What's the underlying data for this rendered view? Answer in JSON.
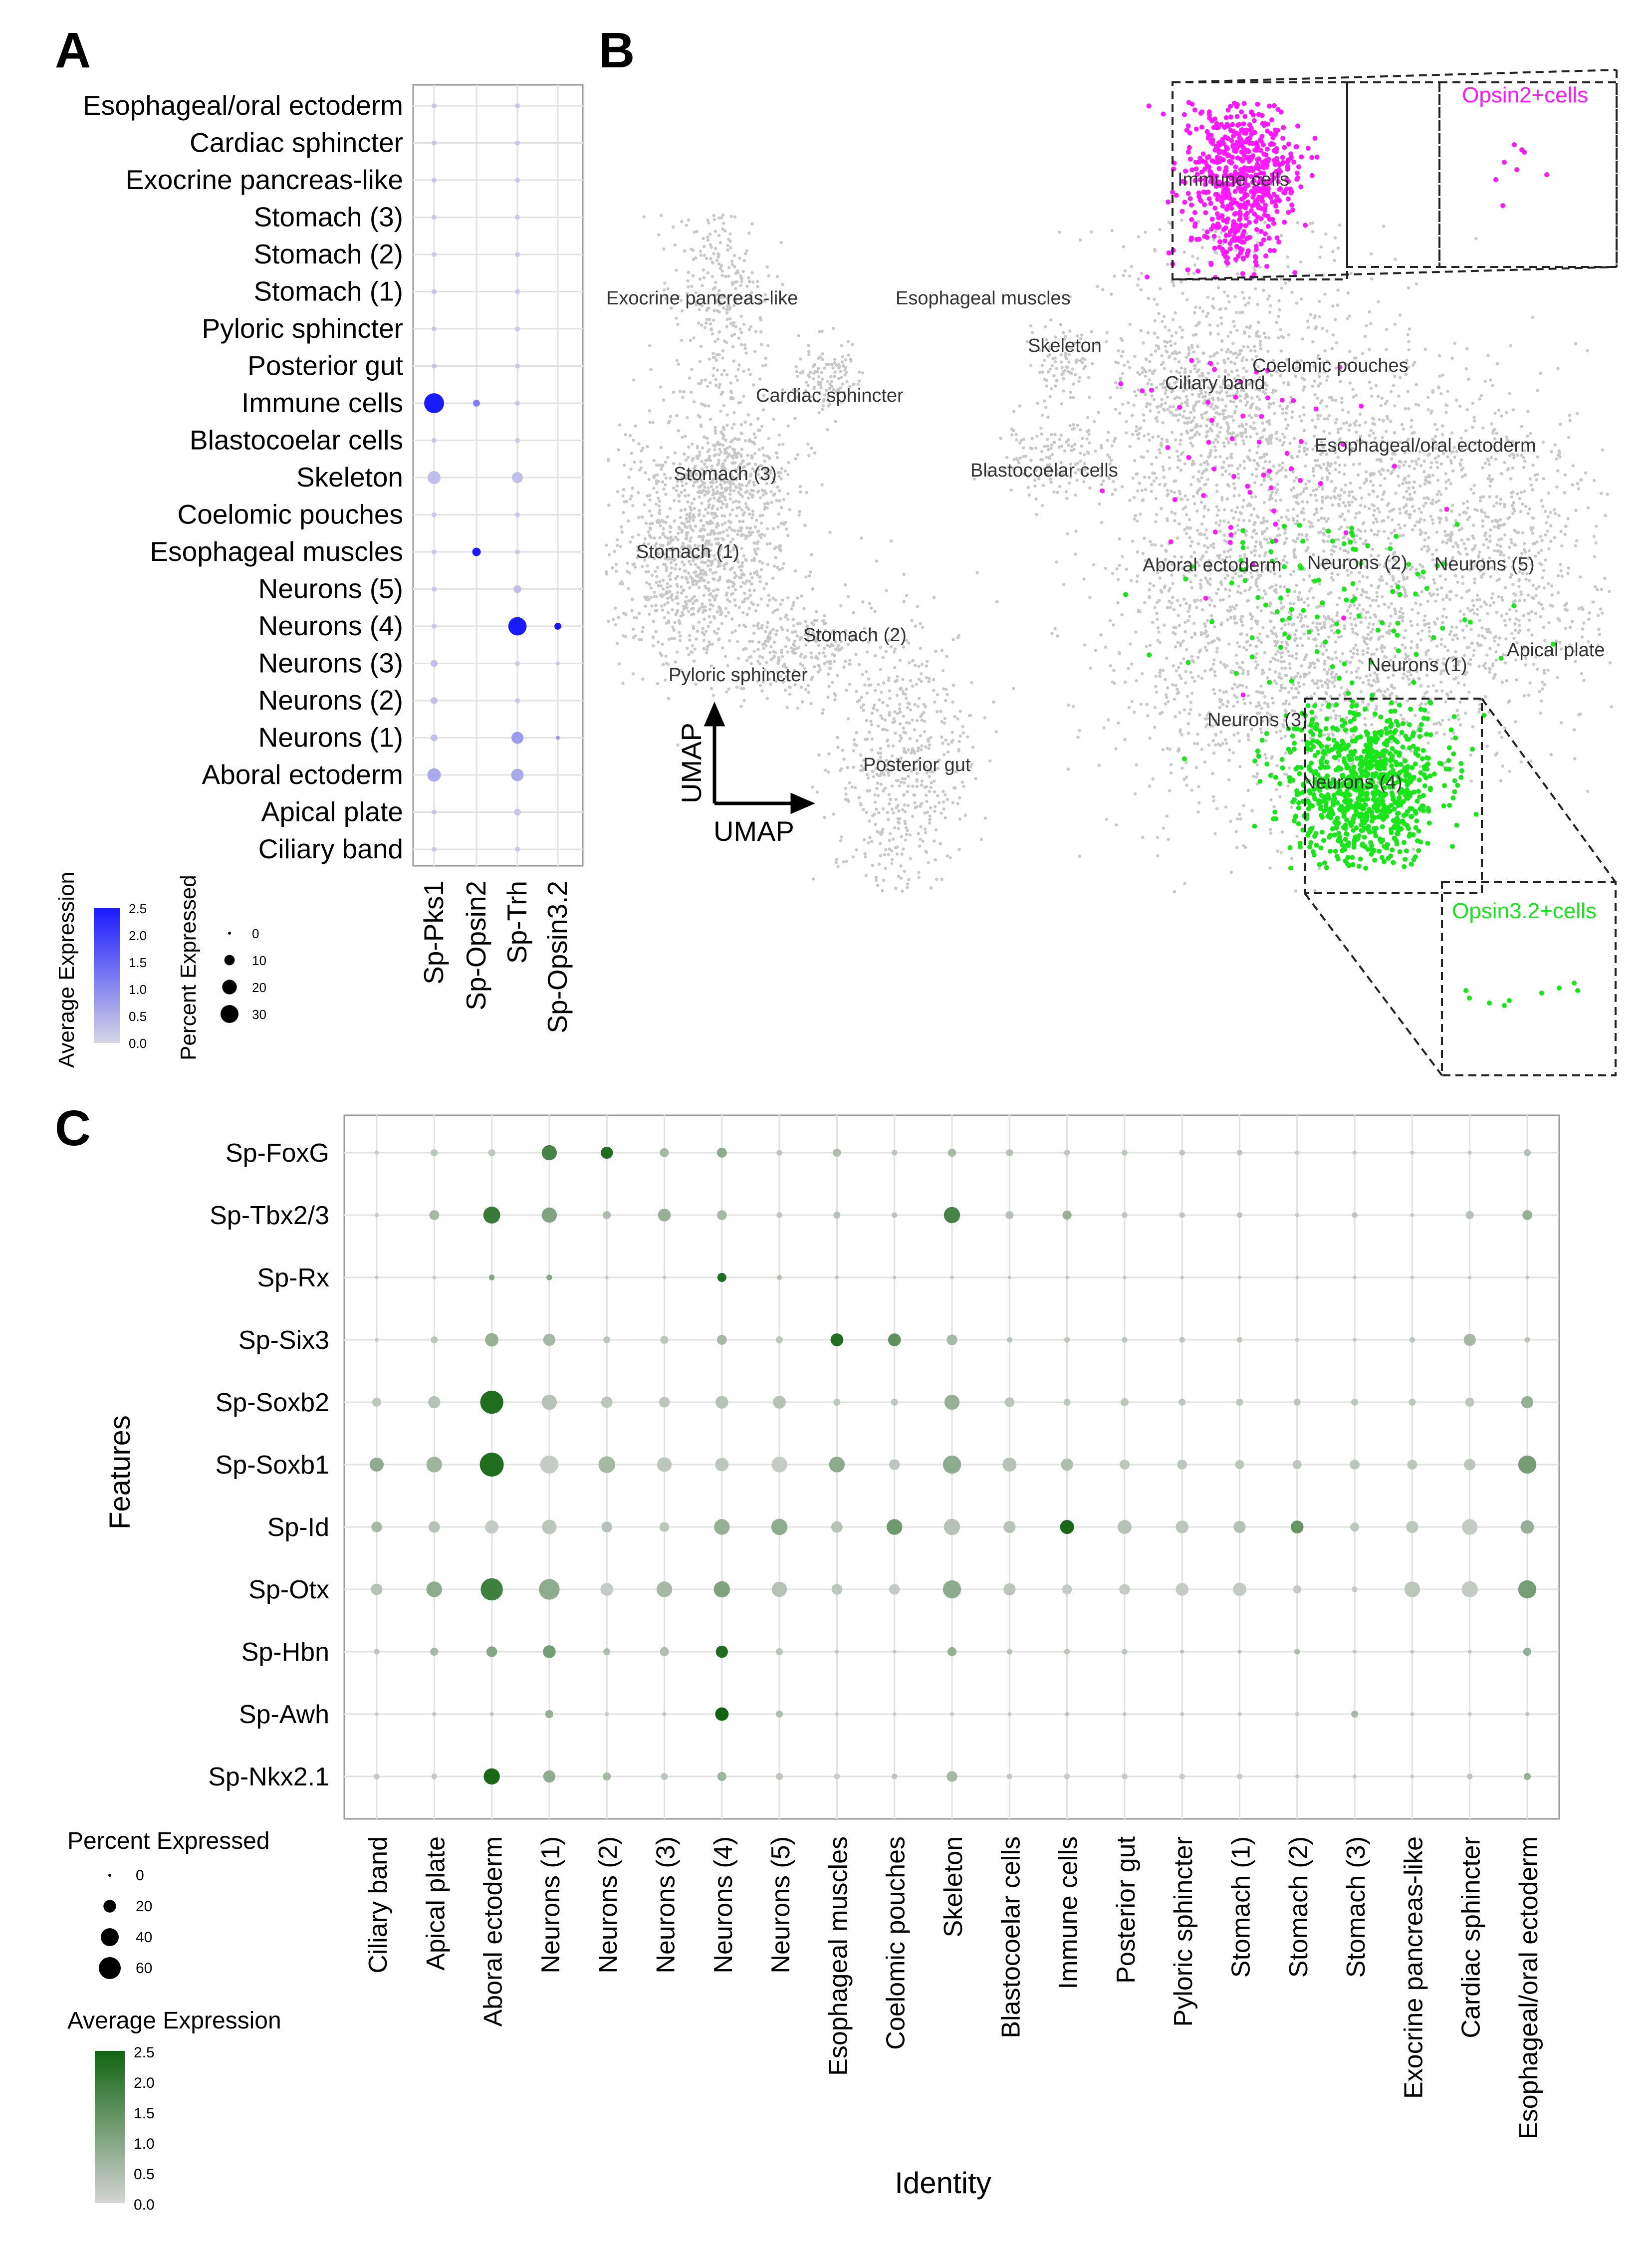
{
  "panel_labels": {
    "a": "A",
    "b": "B",
    "c": "C"
  },
  "colors": {
    "blue_high": "#1a1aff",
    "blue_low": "#d6d6e6",
    "green_high": "#106410",
    "green_low": "#d4d4d4",
    "magenta": "#ff19ff",
    "green_cells": "#19e619",
    "grey_cells": "#c8c8c8",
    "grid": "#e2e2e2"
  },
  "chart_data": [
    {
      "id": "A",
      "type": "dot",
      "features": [
        "Sp-Pks1",
        "Sp-Opsin2",
        "Sp-Trh",
        "Sp-Opsin3.2"
      ],
      "identities": [
        "Esophageal/oral ectoderm",
        "Cardiac sphincter",
        "Exocrine pancreas-like",
        "Stomach (3)",
        "Stomach (2)",
        "Stomach (1)",
        "Pyloric sphincter",
        "Posterior gut",
        "Immune cells",
        "Blastocoelar cells",
        "Skeleton",
        "Coelomic pouches",
        "Esophageal muscles",
        "Neurons (5)",
        "Neurons (4)",
        "Neurons (3)",
        "Neurons (2)",
        "Neurons (1)",
        "Aboral ectoderm",
        "Apical plate",
        "Ciliary band"
      ],
      "pct": [
        [
          2,
          0,
          2,
          0
        ],
        [
          2,
          0,
          2,
          0
        ],
        [
          2,
          0,
          2,
          0
        ],
        [
          2,
          0,
          2,
          0
        ],
        [
          2,
          0,
          2,
          0
        ],
        [
          2,
          0,
          2,
          0
        ],
        [
          2,
          0,
          2,
          0
        ],
        [
          2,
          0,
          2,
          0
        ],
        [
          33,
          4,
          2,
          0
        ],
        [
          2,
          0,
          2,
          0
        ],
        [
          14,
          0,
          10,
          0
        ],
        [
          2,
          0,
          2,
          0
        ],
        [
          2,
          6,
          2,
          0
        ],
        [
          2,
          0,
          5,
          0
        ],
        [
          2,
          0,
          28,
          4
        ],
        [
          4,
          0,
          2,
          1
        ],
        [
          4,
          0,
          2,
          0
        ],
        [
          4,
          0,
          12,
          1
        ],
        [
          15,
          0,
          13,
          0
        ],
        [
          2,
          0,
          4,
          0
        ],
        [
          2,
          0,
          2,
          0
        ]
      ],
      "avg": [
        [
          0.2,
          0,
          0.2,
          0
        ],
        [
          0.2,
          0,
          0.2,
          0
        ],
        [
          0.2,
          0,
          0.2,
          0
        ],
        [
          0.2,
          0,
          0.2,
          0
        ],
        [
          0.2,
          0,
          0.2,
          0
        ],
        [
          0.2,
          0,
          0.2,
          0
        ],
        [
          0.2,
          0,
          0.2,
          0
        ],
        [
          0.2,
          0,
          0.2,
          0
        ],
        [
          2.5,
          1.2,
          0.2,
          0
        ],
        [
          0.2,
          0,
          0.2,
          0
        ],
        [
          0.3,
          0,
          0.3,
          0
        ],
        [
          0.2,
          0,
          0.2,
          0
        ],
        [
          0.2,
          2.5,
          0.2,
          0
        ],
        [
          0.2,
          0,
          0.3,
          0
        ],
        [
          0.2,
          0,
          2.5,
          2.5
        ],
        [
          0.3,
          0,
          0.2,
          0.2
        ],
        [
          0.3,
          0,
          0.2,
          0
        ],
        [
          0.3,
          0,
          0.8,
          0.8
        ],
        [
          0.6,
          0,
          0.6,
          0
        ],
        [
          0.2,
          0,
          0.2,
          0
        ],
        [
          0.2,
          0,
          0.2,
          0
        ]
      ],
      "legend_expression": {
        "title": "Average Expression",
        "ticks": [
          "2.5",
          "2.0",
          "1.5",
          "1.0",
          "0.5",
          "0.0"
        ]
      },
      "legend_percent": {
        "title": "Percent Expressed",
        "ticks": [
          "0",
          "10",
          "20",
          "30"
        ]
      }
    },
    {
      "id": "B",
      "type": "scatter",
      "title": "UMAP",
      "xlabel": "UMAP",
      "ylabel": "UMAP",
      "cluster_labels": [
        "Exocrine pancreas-like",
        "Esophageal muscles",
        "Skeleton",
        "Coelomic pouches",
        "Ciliary band",
        "Cardiac sphincter",
        "Esophageal/oral ectoderm",
        "Stomach (3)",
        "Blastocoelar cells",
        "Stomach (1)",
        "Aboral ectoderm",
        "Neurons (2)",
        "Neurons (5)",
        "Stomach (2)",
        "Apical plate",
        "Neurons (1)",
        "Pyloric sphincter",
        "Neurons (3)",
        "Posterior gut",
        "Neurons (4)",
        "Immune cells"
      ],
      "inset_opsin2": "Opsin2+cells",
      "inset_opsin32": "Opsin3.2+cells"
    },
    {
      "id": "C",
      "type": "dot",
      "ylabel": "Features",
      "xlabel": "Identity",
      "features": [
        "Sp-FoxG",
        "Sp-Tbx2/3",
        "Sp-Rx",
        "Sp-Six3",
        "Sp-Soxb2",
        "Sp-Soxb1",
        "Sp-Id",
        "Sp-Otx",
        "Sp-Hbn",
        "Sp-Awh",
        "Sp-Nkx2.1"
      ],
      "identities": [
        "Ciliary band",
        "Apical plate",
        "Aboral ectoderm",
        "Neurons (1)",
        "Neurons (2)",
        "Neurons (3)",
        "Neurons (4)",
        "Neurons (5)",
        "Esophageal muscles",
        "Coelomic pouches",
        "Skeleton",
        "Blastocoelar cells",
        "Immune cells",
        "Posterior gut",
        "Pyloric sphincter",
        "Stomach (1)",
        "Stomach (2)",
        "Stomach (3)",
        "Exocrine pancreas-like",
        "Cardiac sphincter",
        "Esophageal/oral ectoderm"
      ],
      "pct": [
        [
          2,
          6,
          6,
          28,
          18,
          10,
          12,
          4,
          8,
          4,
          8,
          6,
          4,
          4,
          4,
          4,
          2,
          2,
          2,
          2,
          6
        ],
        [
          2,
          12,
          35,
          28,
          8,
          20,
          12,
          4,
          6,
          4,
          32,
          8,
          10,
          4,
          4,
          4,
          2,
          4,
          2,
          8,
          12
        ],
        [
          1,
          1,
          4,
          4,
          1,
          1,
          10,
          3,
          1,
          1,
          1,
          1,
          1,
          1,
          1,
          1,
          1,
          1,
          1,
          1,
          1
        ],
        [
          2,
          6,
          22,
          18,
          6,
          8,
          12,
          6,
          20,
          20,
          14,
          4,
          4,
          4,
          4,
          4,
          2,
          2,
          4,
          18,
          4
        ],
        [
          10,
          18,
          65,
          28,
          16,
          14,
          20,
          20,
          6,
          6,
          28,
          12,
          6,
          8,
          6,
          6,
          6,
          6,
          6,
          10,
          18
        ],
        [
          24,
          30,
          70,
          40,
          34,
          26,
          22,
          30,
          30,
          14,
          40,
          24,
          18,
          12,
          12,
          10,
          10,
          12,
          12,
          16,
          40
        ],
        [
          14,
          16,
          22,
          26,
          14,
          12,
          30,
          32,
          16,
          30,
          32,
          18,
          24,
          24,
          20,
          18,
          20,
          10,
          18,
          30,
          22
        ],
        [
          16,
          30,
          60,
          52,
          20,
          30,
          32,
          28,
          14,
          14,
          40,
          18,
          12,
          14,
          20,
          22,
          8,
          4,
          30,
          32,
          40
        ],
        [
          4,
          8,
          14,
          20,
          6,
          10,
          18,
          6,
          2,
          2,
          10,
          4,
          4,
          4,
          2,
          2,
          4,
          2,
          2,
          2,
          8
        ],
        [
          1,
          2,
          2,
          8,
          2,
          2,
          22,
          6,
          1,
          1,
          2,
          2,
          2,
          2,
          2,
          2,
          2,
          6,
          2,
          2,
          2
        ],
        [
          4,
          4,
          32,
          18,
          8,
          6,
          10,
          6,
          4,
          4,
          14,
          4,
          4,
          4,
          4,
          4,
          2,
          2,
          2,
          4,
          6
        ]
      ],
      "avg": [
        [
          0.2,
          0.3,
          0.3,
          1.8,
          2.3,
          0.6,
          0.9,
          0.3,
          0.5,
          0.3,
          0.6,
          0.4,
          0.3,
          0.3,
          0.3,
          0.3,
          0.2,
          0.2,
          0.2,
          0.2,
          0.4
        ],
        [
          0.2,
          0.6,
          2.0,
          1.1,
          0.5,
          0.8,
          0.6,
          0.3,
          0.4,
          0.3,
          1.8,
          0.4,
          0.8,
          0.3,
          0.3,
          0.3,
          0.2,
          0.3,
          0.2,
          0.4,
          0.8
        ],
        [
          0.3,
          0.3,
          1.0,
          1.0,
          0.3,
          0.3,
          2.3,
          0.5,
          0.3,
          0.3,
          0.3,
          0.3,
          0.3,
          0.3,
          0.3,
          0.3,
          0.3,
          0.3,
          0.3,
          0.3,
          0.3
        ],
        [
          0.2,
          0.3,
          0.8,
          0.6,
          0.3,
          0.3,
          0.6,
          0.3,
          2.3,
          1.5,
          0.6,
          0.3,
          0.3,
          0.3,
          0.3,
          0.3,
          0.2,
          0.2,
          0.3,
          0.6,
          0.3
        ],
        [
          0.3,
          0.4,
          2.3,
          0.4,
          0.3,
          0.3,
          0.4,
          0.4,
          0.3,
          0.3,
          0.8,
          0.3,
          0.3,
          0.3,
          0.3,
          0.3,
          0.3,
          0.3,
          0.3,
          0.3,
          0.8
        ],
        [
          0.9,
          0.7,
          2.3,
          0.2,
          0.6,
          0.3,
          0.3,
          0.2,
          0.9,
          0.3,
          0.9,
          0.4,
          0.5,
          0.3,
          0.3,
          0.3,
          0.3,
          0.3,
          0.3,
          0.3,
          1.2
        ],
        [
          0.6,
          0.4,
          0.2,
          0.3,
          0.4,
          0.3,
          0.8,
          0.9,
          0.4,
          1.3,
          0.4,
          0.4,
          2.4,
          0.4,
          0.3,
          0.4,
          1.4,
          0.3,
          0.3,
          0.2,
          0.8
        ],
        [
          0.4,
          0.9,
          1.9,
          0.9,
          0.2,
          0.6,
          1.1,
          0.4,
          0.3,
          0.2,
          0.9,
          0.3,
          0.2,
          0.2,
          0.2,
          0.2,
          0.2,
          0.2,
          0.3,
          0.2,
          1.2
        ],
        [
          0.3,
          0.6,
          1.0,
          1.2,
          0.5,
          0.5,
          2.3,
          0.3,
          0.2,
          0.2,
          0.8,
          0.3,
          0.3,
          0.3,
          0.3,
          0.3,
          0.5,
          0.2,
          0.2,
          0.2,
          0.8
        ],
        [
          0.2,
          0.3,
          0.3,
          0.8,
          0.2,
          0.3,
          2.5,
          0.5,
          0.2,
          0.2,
          0.2,
          0.2,
          0.3,
          0.2,
          0.2,
          0.2,
          0.2,
          0.6,
          0.2,
          0.2,
          0.3
        ],
        [
          0.2,
          0.2,
          2.4,
          0.9,
          0.6,
          0.3,
          0.7,
          0.3,
          0.2,
          0.3,
          0.6,
          0.2,
          0.2,
          0.2,
          0.2,
          0.2,
          0.2,
          0.2,
          0.2,
          0.3,
          0.8
        ]
      ],
      "legend_percent": {
        "title": "Percent Expressed",
        "ticks": [
          "0",
          "20",
          "40",
          "60"
        ]
      },
      "legend_expression": {
        "title": "Average Expression",
        "ticks": [
          "2.5",
          "2.0",
          "1.5",
          "1.0",
          "0.5",
          "0.0"
        ]
      }
    }
  ]
}
